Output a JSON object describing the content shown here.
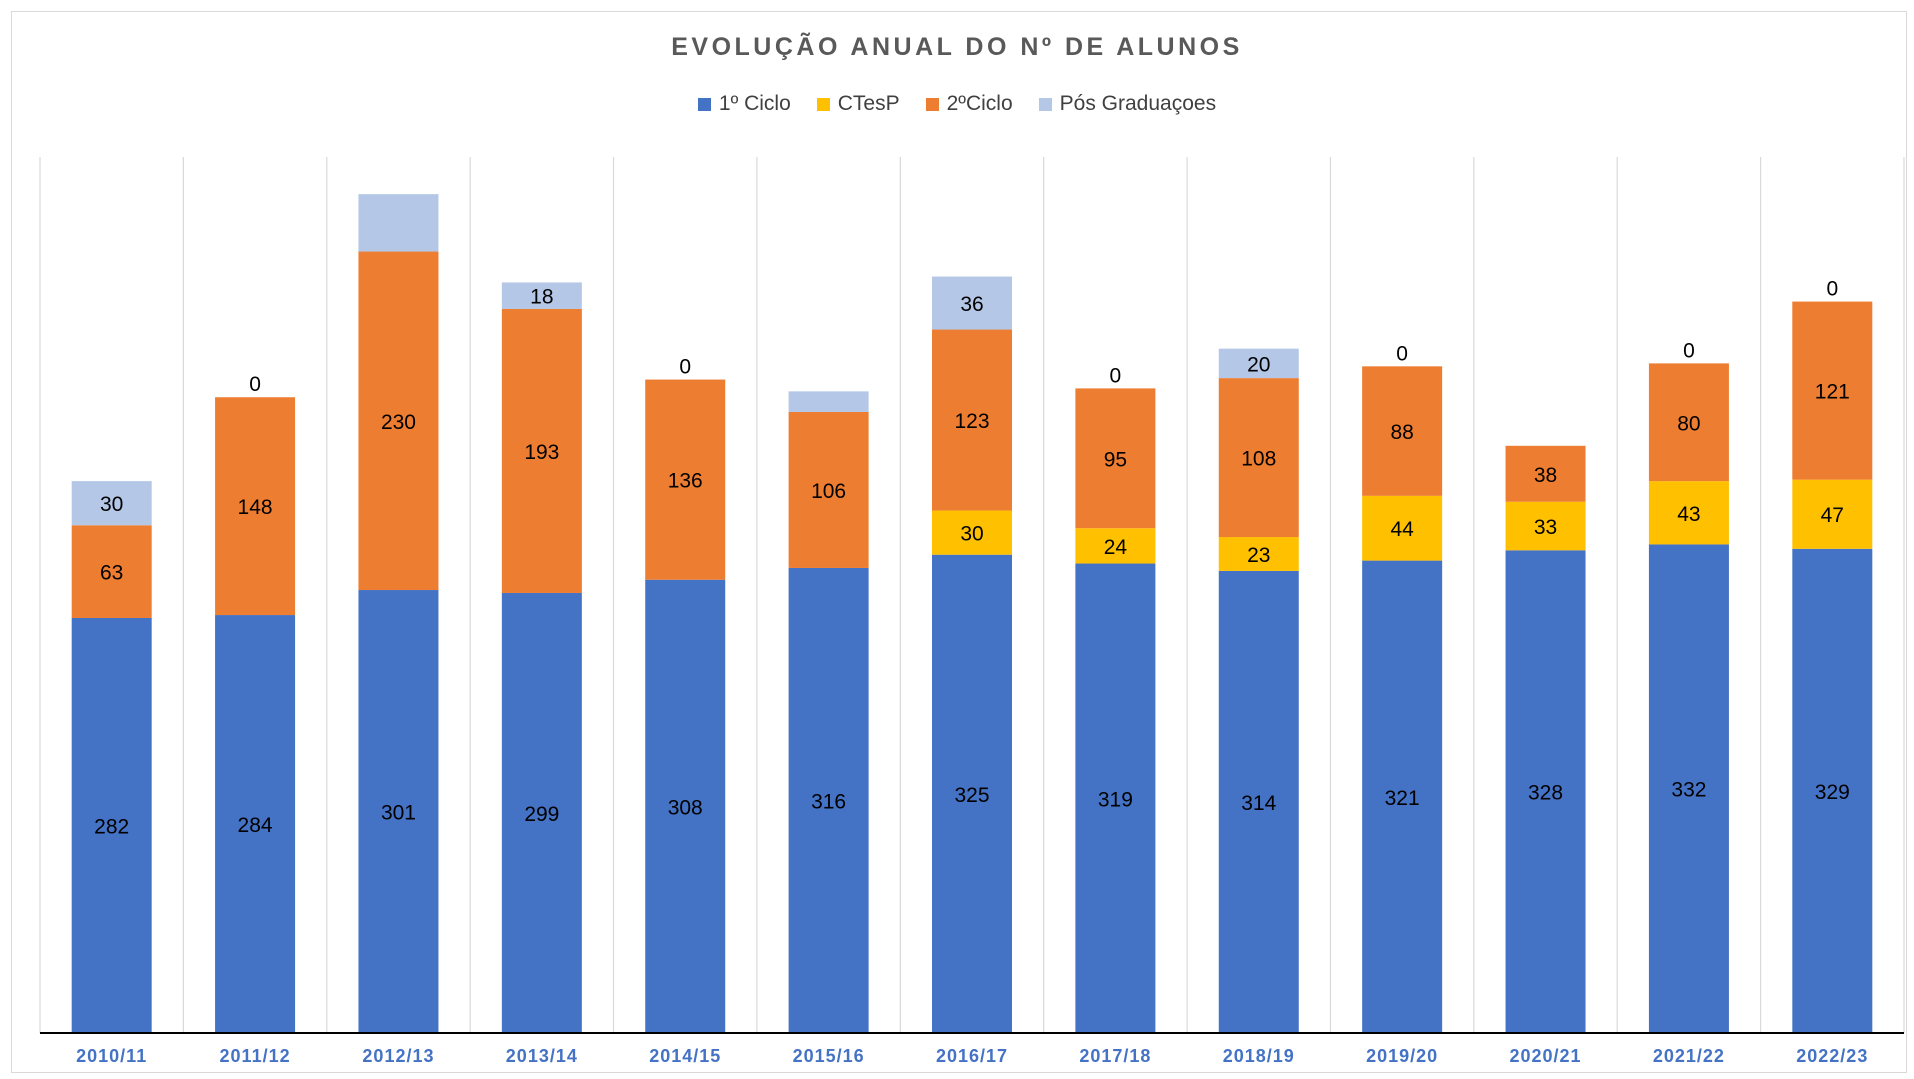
{
  "chart_data": {
    "type": "bar",
    "stacked": true,
    "title": "EVOLUÇÃO ANUAL DO Nº DE ALUNOS",
    "legend_position": "top",
    "categories": [
      "2010/11",
      "2011/12",
      "2012/13",
      "2013/14",
      "2014/15",
      "2015/16",
      "2016/17",
      "2017/18",
      "2018/19",
      "2019/20",
      "2020/21",
      "2021/22",
      "2022/23"
    ],
    "series": [
      {
        "name": "1º Ciclo",
        "color": "#4472C4",
        "values": [
          282,
          284,
          301,
          299,
          308,
          316,
          325,
          319,
          314,
          321,
          328,
          332,
          329
        ],
        "labels": [
          "282",
          "284",
          "301",
          "299",
          "308",
          "316",
          "325",
          "319",
          "314",
          "321",
          "328",
          "332",
          "329"
        ]
      },
      {
        "name": "CTesP",
        "color": "#FFC000",
        "values": [
          0,
          0,
          0,
          0,
          0,
          0,
          30,
          24,
          23,
          44,
          33,
          43,
          47
        ],
        "labels": [
          "",
          "",
          "",
          "",
          "",
          "",
          "30",
          "24",
          "23",
          "44",
          "33",
          "43",
          "47"
        ]
      },
      {
        "name": "2ºCiclo",
        "color": "#ED7D31",
        "values": [
          63,
          148,
          230,
          193,
          136,
          106,
          123,
          95,
          108,
          88,
          38,
          80,
          121
        ],
        "labels": [
          "63",
          "148",
          "230",
          "193",
          "136",
          "106",
          "123",
          "95",
          "108",
          "88",
          "38",
          "80",
          "121"
        ]
      },
      {
        "name": "Pós Graduaçoes",
        "color": "#B4C7E7",
        "values": [
          30,
          0,
          39,
          18,
          0,
          14,
          36,
          0,
          20,
          0,
          0,
          0,
          0
        ],
        "labels": [
          "30",
          "0",
          "",
          "18",
          "0",
          "",
          "36",
          "0",
          "20",
          "0",
          "",
          "0",
          "0"
        ]
      }
    ],
    "ylim": [
      0,
      600
    ],
    "y_axis_visible": false,
    "vertical_gridlines": true,
    "xtick_color": "#4472C4"
  }
}
